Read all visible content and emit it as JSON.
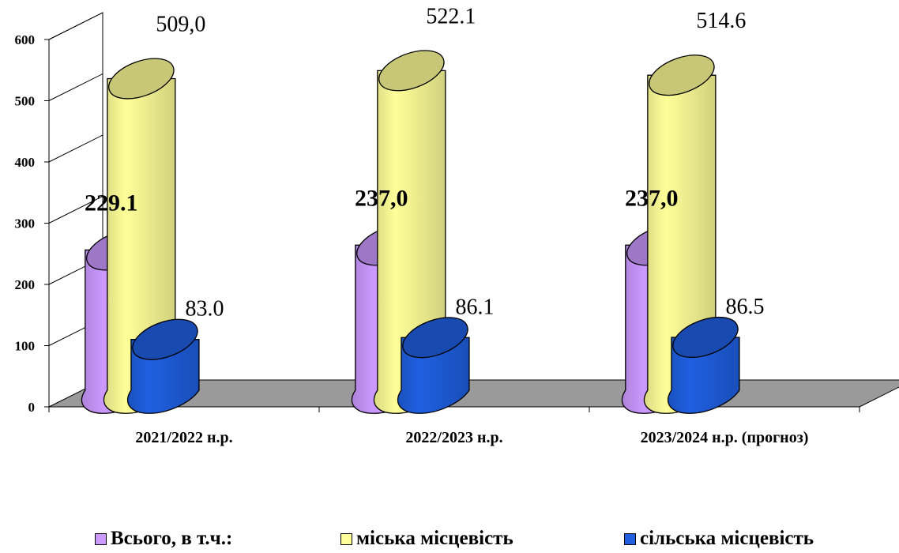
{
  "chart_data": {
    "type": "bar",
    "style": "3d-cylinder",
    "categories": [
      "2021/2022 н.р.",
      "2022/2023 н.р.",
      "2023/2024 н.р. (прогноз)"
    ],
    "series": [
      {
        "name": "Всього, в т.ч.:",
        "color": "#cc99ff",
        "values": [
          229.1,
          237.0,
          237.0
        ],
        "labels": [
          "229.1",
          "237,0",
          "237,0"
        ]
      },
      {
        "name": "міська місцевість",
        "color": "#ffff99",
        "values": [
          509.0,
          522.1,
          514.6
        ],
        "labels": [
          "509,0",
          "522.1",
          "514.6"
        ]
      },
      {
        "name": "сільська місцевість",
        "color": "#1f5fe0",
        "values": [
          83.0,
          86.1,
          86.5
        ],
        "labels": [
          "83.0",
          "86.1",
          "86.5"
        ]
      }
    ],
    "yticks": [
      0,
      100,
      200,
      300,
      400,
      500,
      600
    ],
    "ylim": [
      0,
      600
    ],
    "grid": true,
    "legend": "bottom"
  }
}
